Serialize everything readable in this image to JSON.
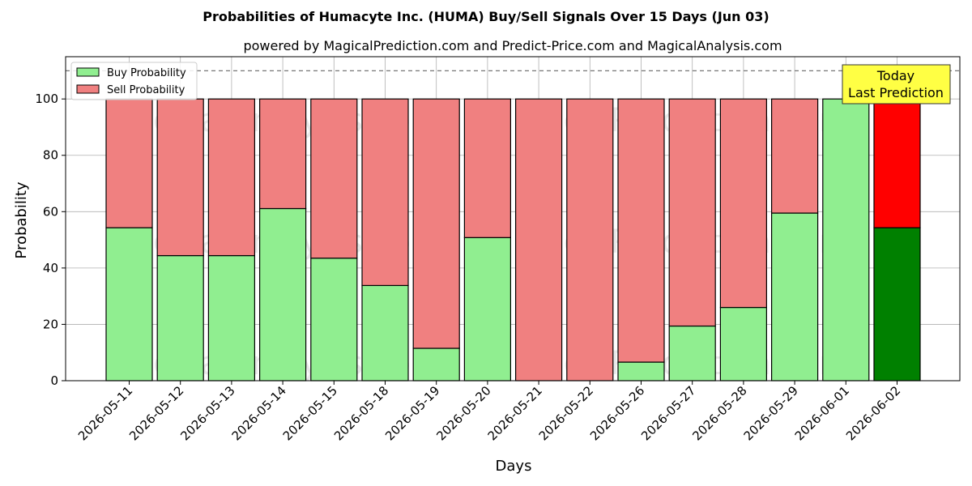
{
  "chart_data": {
    "type": "bar",
    "stacked": true,
    "title": "Probabilities of Humacyte Inc. (HUMA) Buy/Sell Signals Over 15 Days (Jun 03)",
    "subtitle": "powered by MagicalPrediction.com and Predict-Price.com and MagicalAnalysis.com",
    "xlabel": "Days",
    "ylabel": "Probability",
    "ylim": [
      0,
      115
    ],
    "yticks": [
      0,
      20,
      40,
      60,
      80,
      100
    ],
    "reference_line": 110,
    "grid": true,
    "legend_position": "top-left",
    "categories": [
      "2026-05-11",
      "2026-05-12",
      "2026-05-13",
      "2026-05-14",
      "2026-05-15",
      "2026-05-18",
      "2026-05-19",
      "2026-05-20",
      "2026-05-21",
      "2026-05-22",
      "2026-05-26",
      "2026-05-27",
      "2026-05-28",
      "2026-05-29",
      "2026-06-01",
      "2026-06-02"
    ],
    "series": [
      {
        "name": "Buy Probability",
        "color": "#90ee90",
        "values": [
          54.3,
          44.4,
          44.4,
          61.1,
          43.5,
          33.8,
          11.5,
          50.8,
          0,
          0,
          6.6,
          19.4,
          26.0,
          59.5,
          100,
          54.3
        ]
      },
      {
        "name": "Sell Probability",
        "color": "#f08080",
        "values": [
          45.7,
          55.6,
          55.6,
          38.9,
          56.5,
          66.2,
          88.5,
          49.2,
          100,
          100,
          93.4,
          80.6,
          74.0,
          40.5,
          0,
          45.7
        ]
      }
    ],
    "highlight": {
      "index": 15,
      "buy_color": "#008000",
      "sell_color": "#ff0000"
    },
    "annotation": {
      "line1": "Today",
      "line2": "Last Prediction",
      "box_color": "#ffff44"
    },
    "watermark": [
      "MagicalAnalysis.com",
      "MagicalPrediction.com"
    ]
  }
}
